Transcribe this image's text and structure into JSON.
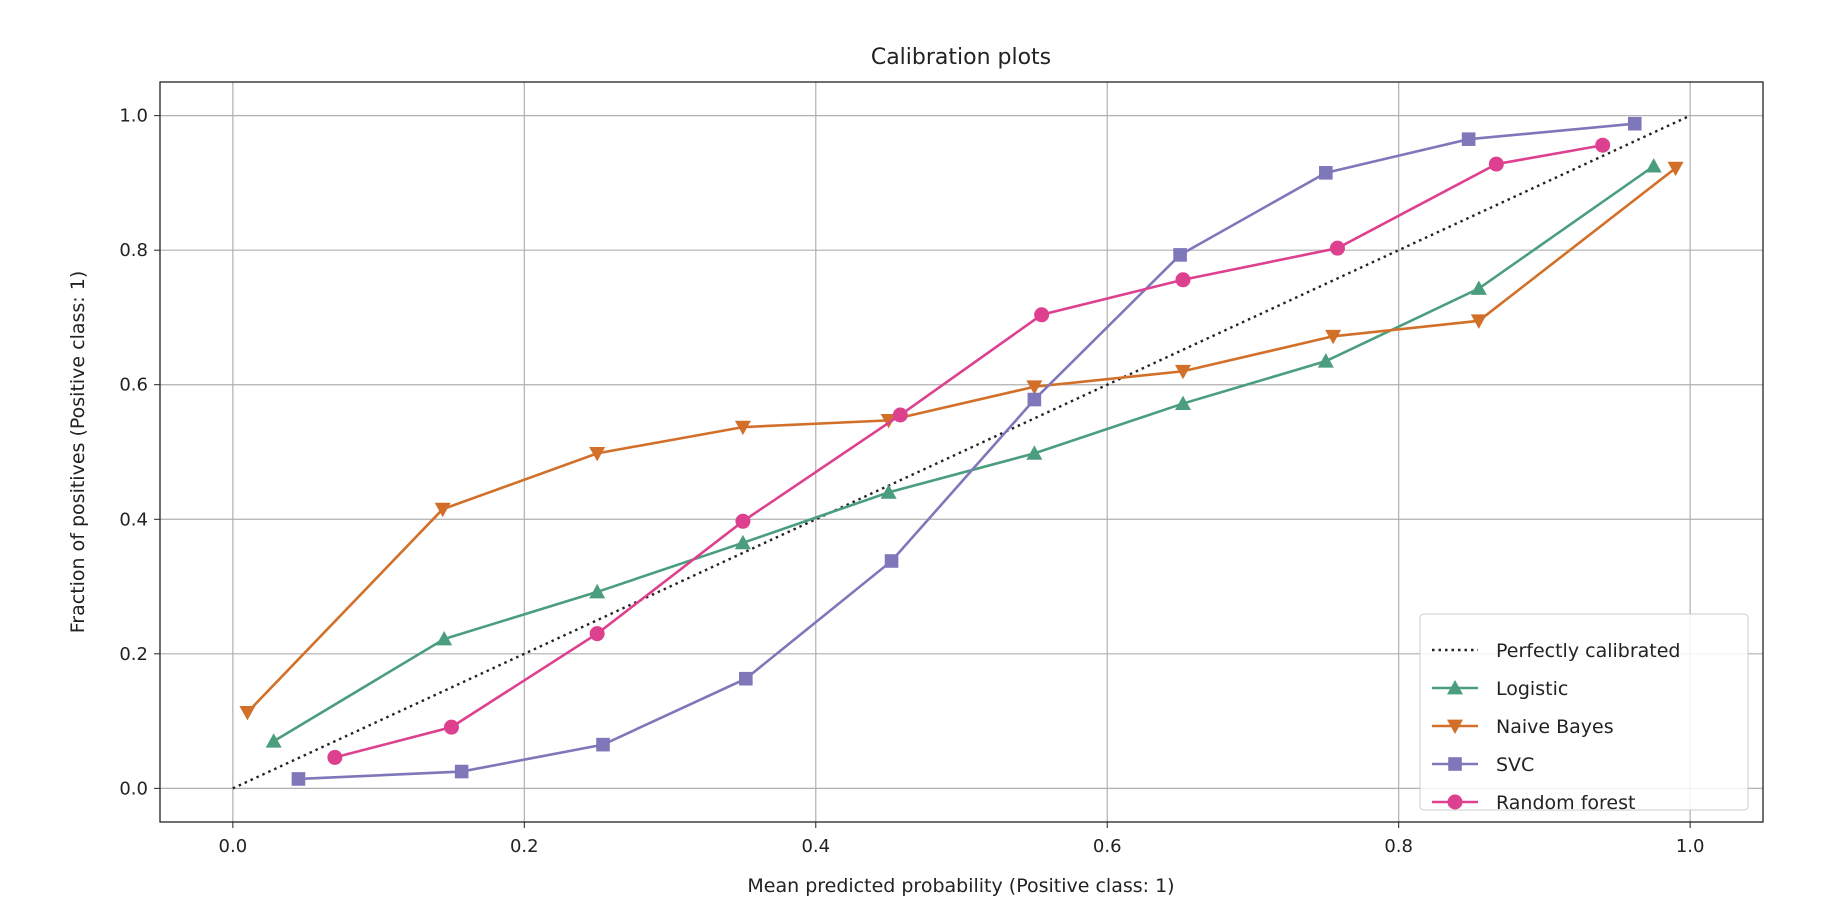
{
  "chart_data": {
    "type": "line",
    "title": "Calibration plots",
    "xlabel": "Mean predicted probability (Positive class: 1)",
    "ylabel": "Fraction of positives (Positive class: 1)",
    "xlim": [
      -0.05,
      1.05
    ],
    "ylim": [
      -0.05,
      1.05
    ],
    "xticks": [
      "0.0",
      "0.2",
      "0.4",
      "0.6",
      "0.8",
      "1.0"
    ],
    "yticks": [
      "0.0",
      "0.2",
      "0.4",
      "0.6",
      "0.8",
      "1.0"
    ],
    "grid": true,
    "legend_position": "lower-right",
    "reference": {
      "name": "Perfectly calibrated",
      "x": [
        0,
        1
      ],
      "y": [
        0,
        1
      ],
      "color": "#222222",
      "style": "dotted"
    },
    "series": [
      {
        "name": "Logistic",
        "color": "#4a9e7e",
        "marker": "triangle-up",
        "x": [
          0.028,
          0.145,
          0.25,
          0.35,
          0.45,
          0.55,
          0.652,
          0.75,
          0.855,
          0.975
        ],
        "y": [
          0.07,
          0.222,
          0.292,
          0.365,
          0.44,
          0.498,
          0.572,
          0.635,
          0.743,
          0.925
        ]
      },
      {
        "name": "Naive Bayes",
        "color": "#d2702a",
        "marker": "triangle-down",
        "x": [
          0.01,
          0.144,
          0.25,
          0.35,
          0.45,
          0.55,
          0.652,
          0.755,
          0.855,
          0.99
        ],
        "y": [
          0.113,
          0.415,
          0.498,
          0.537,
          0.547,
          0.597,
          0.62,
          0.672,
          0.695,
          0.922
        ]
      },
      {
        "name": "SVC",
        "color": "#7e78ba",
        "marker": "square",
        "x": [
          0.045,
          0.157,
          0.254,
          0.352,
          0.452,
          0.55,
          0.65,
          0.75,
          0.848,
          0.962
        ],
        "y": [
          0.014,
          0.025,
          0.065,
          0.163,
          0.338,
          0.578,
          0.793,
          0.915,
          0.965,
          0.988
        ]
      },
      {
        "name": "Random forest",
        "color": "#de4090",
        "marker": "circle",
        "x": [
          0.07,
          0.15,
          0.25,
          0.35,
          0.458,
          0.555,
          0.652,
          0.758,
          0.867,
          0.94
        ],
        "y": [
          0.046,
          0.091,
          0.23,
          0.397,
          0.555,
          0.704,
          0.756,
          0.803,
          0.928,
          0.956
        ]
      }
    ]
  }
}
